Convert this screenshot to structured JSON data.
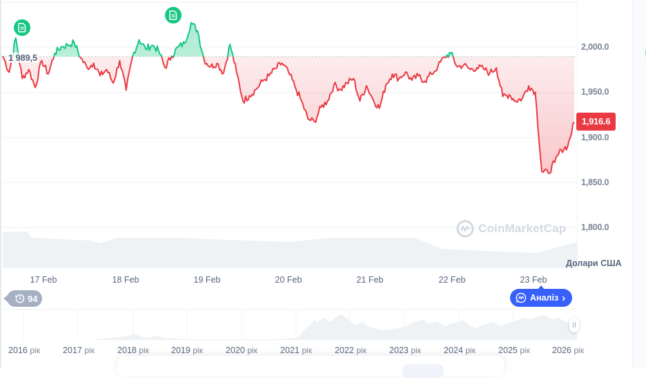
{
  "chart_data": {
    "type": "line",
    "title": "",
    "xlabel": "",
    "ylabel": "Долари США",
    "currency_label": "Долари США",
    "ylim": [
      1780,
      2040
    ],
    "grid": true,
    "reference_line": {
      "value": 1989.5,
      "label": "1 989,5",
      "style": "dotted"
    },
    "current_price": {
      "value": 1916.6,
      "label": "1,916.6"
    },
    "y_ticks": [
      {
        "value": 2000,
        "label": "2,000.0"
      },
      {
        "value": 1950,
        "label": "1,950.0"
      },
      {
        "value": 1900,
        "label": "1,900.0"
      },
      {
        "value": 1850,
        "label": "1,850.0"
      },
      {
        "value": 1800,
        "label": "1,800.0"
      }
    ],
    "x_ticks": [
      "17 Feb",
      "18 Feb",
      "19 Feb",
      "20 Feb",
      "21 Feb",
      "22 Feb",
      "23 Feb"
    ],
    "series": [
      {
        "name": "Price",
        "color_above": "#16c784",
        "color_below": "#ea3943",
        "points": [
          [
            "16 Feb 12:00",
            1990
          ],
          [
            "16 Feb 14:00",
            1972
          ],
          [
            "16 Feb 16:00",
            2010
          ],
          [
            "16 Feb 18:00",
            1965
          ],
          [
            "16 Feb 20:00",
            1975
          ],
          [
            "16 Feb 22:00",
            1955
          ],
          [
            "17 Feb 00:00",
            1985
          ],
          [
            "17 Feb 02:00",
            1970
          ],
          [
            "17 Feb 04:00",
            1993
          ],
          [
            "17 Feb 06:00",
            2000
          ],
          [
            "17 Feb 08:00",
            2002
          ],
          [
            "17 Feb 10:00",
            2005
          ],
          [
            "17 Feb 12:00",
            1988
          ],
          [
            "17 Feb 14:00",
            1977
          ],
          [
            "17 Feb 16:00",
            1982
          ],
          [
            "17 Feb 18:00",
            1968
          ],
          [
            "17 Feb 20:00",
            1975
          ],
          [
            "17 Feb 22:00",
            1960
          ],
          [
            "18 Feb 00:00",
            1985
          ],
          [
            "18 Feb 02:00",
            1952
          ],
          [
            "18 Feb 04:00",
            1990
          ],
          [
            "18 Feb 06:00",
            2008
          ],
          [
            "18 Feb 08:00",
            1998
          ],
          [
            "18 Feb 10:00",
            2002
          ],
          [
            "18 Feb 12:00",
            1996
          ],
          [
            "18 Feb 14:00",
            1977
          ],
          [
            "18 Feb 16:00",
            1990
          ],
          [
            "18 Feb 18:00",
            2000
          ],
          [
            "18 Feb 20:00",
            2004
          ],
          [
            "18 Feb 22:00",
            2027
          ],
          [
            "19 Feb 00:00",
            2018
          ],
          [
            "19 Feb 02:00",
            1986
          ],
          [
            "19 Feb 04:00",
            1978
          ],
          [
            "19 Feb 06:00",
            1982
          ],
          [
            "19 Feb 08:00",
            1971
          ],
          [
            "19 Feb 10:00",
            2003
          ],
          [
            "19 Feb 12:00",
            1972
          ],
          [
            "19 Feb 14:00",
            1940
          ],
          [
            "19 Feb 16:00",
            1946
          ],
          [
            "19 Feb 18:00",
            1953
          ],
          [
            "19 Feb 20:00",
            1962
          ],
          [
            "19 Feb 22:00",
            1968
          ],
          [
            "20 Feb 00:00",
            1976
          ],
          [
            "20 Feb 02:00",
            1982
          ],
          [
            "20 Feb 04:00",
            1972
          ],
          [
            "20 Feb 06:00",
            1956
          ],
          [
            "20 Feb 08:00",
            1940
          ],
          [
            "20 Feb 10:00",
            1920
          ],
          [
            "20 Feb 12:00",
            1917
          ],
          [
            "20 Feb 14:00",
            1933
          ],
          [
            "20 Feb 16:00",
            1940
          ],
          [
            "20 Feb 18:00",
            1958
          ],
          [
            "20 Feb 20:00",
            1953
          ],
          [
            "20 Feb 22:00",
            1960
          ],
          [
            "21 Feb 00:00",
            1965
          ],
          [
            "21 Feb 02:00",
            1940
          ],
          [
            "21 Feb 04:00",
            1957
          ],
          [
            "21 Feb 06:00",
            1942
          ],
          [
            "21 Feb 08:00",
            1932
          ],
          [
            "21 Feb 10:00",
            1958
          ],
          [
            "21 Feb 12:00",
            1970
          ],
          [
            "21 Feb 14:00",
            1965
          ],
          [
            "21 Feb 16:00",
            1972
          ],
          [
            "21 Feb 18:00",
            1963
          ],
          [
            "21 Feb 20:00",
            1968
          ],
          [
            "21 Feb 22:00",
            1962
          ],
          [
            "22 Feb 00:00",
            1970
          ],
          [
            "22 Feb 02:00",
            1978
          ],
          [
            "22 Feb 04:00",
            1989
          ],
          [
            "22 Feb 06:00",
            1993
          ],
          [
            "22 Feb 08:00",
            1978
          ],
          [
            "22 Feb 10:00",
            1980
          ],
          [
            "22 Feb 12:00",
            1975
          ],
          [
            "22 Feb 14:00",
            1977
          ],
          [
            "22 Feb 16:00",
            1976
          ],
          [
            "22 Feb 18:00",
            1971
          ],
          [
            "22 Feb 20:00",
            1977
          ],
          [
            "22 Feb 22:00",
            1945
          ],
          [
            "23 Feb 00:00",
            1947
          ],
          [
            "23 Feb 02:00",
            1940
          ],
          [
            "23 Feb 04:00",
            1943
          ],
          [
            "23 Feb 06:00",
            1957
          ],
          [
            "23 Feb 08:00",
            1950
          ],
          [
            "23 Feb 10:00",
            1862
          ],
          [
            "23 Feb 12:00",
            1860
          ],
          [
            "23 Feb 14:00",
            1872
          ],
          [
            "23 Feb 16:00",
            1886
          ],
          [
            "23 Feb 18:00",
            1890
          ],
          [
            "23 Feb 20:00",
            1916.6
          ]
        ]
      }
    ],
    "navigator": {
      "type": "area",
      "x_ticks": [
        "2016 рік",
        "2017 рік",
        "2018 рік",
        "2019 рік",
        "2020 рік",
        "2021 рік",
        "2022 рік",
        "2023 рік",
        "2024 рік",
        "2025 рік",
        "2026 рік"
      ]
    },
    "volume": {
      "type": "area",
      "description": "light gray volume band at bottom of main chart"
    }
  },
  "ui": {
    "currency_label": "Долари США",
    "reference_label": "1 989,5",
    "current_price_label": "1,916.6",
    "watermark": "CoinMarketCap",
    "history_badge": "94",
    "analysis_button": "Аналіз",
    "analysis_chevron": "›",
    "year_suffix": "рік",
    "years": [
      "2016",
      "2017",
      "2018",
      "2019",
      "2020",
      "2021",
      "2022",
      "2023",
      "2024",
      "2025",
      "2026"
    ],
    "x_ticks": [
      "17 Feb",
      "18 Feb",
      "19 Feb",
      "20 Feb",
      "21 Feb",
      "22 Feb",
      "23 Feb"
    ],
    "y_ticks": [
      "2,000.0",
      "1,950.0",
      "1,900.0",
      "1,850.0",
      "1,800.0"
    ],
    "icons": {
      "news_marker": "document-icon",
      "history": "clock-history-icon",
      "analysis": "cmc-ai-icon",
      "watermark_logo": "cmc-logo-icon",
      "navigator_handle": "drag-handle-icon"
    },
    "colors": {
      "up": "#16c784",
      "down": "#ea3943",
      "accent": "#3861fb",
      "axis_text": "#7b8696",
      "badge_gray": "#a6b0c3"
    }
  }
}
